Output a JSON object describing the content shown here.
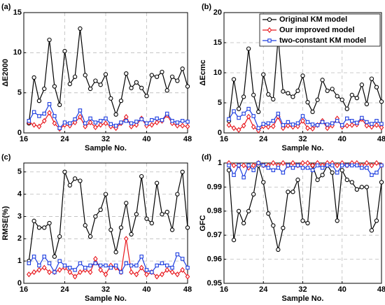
{
  "chart_data": [
    {
      "type": "line",
      "label": "(a)",
      "xlabel": "Sample No.",
      "ylabel": "ΔE2000",
      "grid": true,
      "xlim": [
        16,
        48
      ],
      "xticks": [
        16,
        24,
        32,
        40,
        48
      ],
      "ylim": [
        0,
        15
      ],
      "yticks": [
        0,
        5,
        10,
        15
      ],
      "x": [
        17,
        18,
        19,
        20,
        21,
        22,
        23,
        24,
        25,
        26,
        27,
        28,
        29,
        30,
        31,
        32,
        33,
        34,
        35,
        36,
        37,
        38,
        39,
        40,
        41,
        42,
        43,
        44,
        45,
        46,
        47,
        48
      ],
      "series": [
        {
          "color": "#000000",
          "marker": "circle",
          "values": [
            1.2,
            6.9,
            4.0,
            5.5,
            11.6,
            5.8,
            3.5,
            10.2,
            6.1,
            7.0,
            13.0,
            7.2,
            5.5,
            6.5,
            6.0,
            7.3,
            4.3,
            2.3,
            4.0,
            7.4,
            5.6,
            6.3,
            5.6,
            4.6,
            7.2,
            7.0,
            7.6,
            5.3,
            7.0,
            6.5,
            8.0,
            5.8
          ]
        },
        {
          "color": "#e8171d",
          "marker": "diamond",
          "values": [
            1.3,
            1.0,
            0.8,
            1.5,
            2.5,
            1.2,
            0.5,
            1.0,
            0.9,
            1.3,
            2.0,
            0.8,
            1.3,
            0.7,
            1.0,
            1.2,
            0.8,
            0.6,
            1.2,
            2.0,
            0.8,
            1.0,
            1.8,
            0.9,
            1.0,
            1.3,
            1.5,
            2.2,
            1.2,
            0.9,
            0.9,
            0.8
          ]
        },
        {
          "color": "#1f3fe0",
          "marker": "square",
          "values": [
            1.5,
            2.6,
            2.1,
            2.4,
            3.6,
            2.1,
            0.6,
            1.3,
            1.2,
            1.7,
            2.8,
            1.2,
            1.8,
            1.3,
            1.5,
            1.8,
            1.1,
            0.9,
            1.3,
            1.5,
            1.2,
            1.4,
            1.7,
            1.2,
            1.6,
            1.8,
            1.6,
            2.4,
            1.5,
            1.3,
            1.5,
            1.4
          ]
        }
      ]
    },
    {
      "type": "line",
      "label": "(b)",
      "xlabel": "Sample No.",
      "ylabel": "ΔEcmc",
      "grid": true,
      "legend": "upper right",
      "xlim": [
        16,
        48
      ],
      "xticks": [
        16,
        24,
        32,
        40,
        48
      ],
      "ylim": [
        0,
        20
      ],
      "yticks": [
        0,
        5,
        10,
        15,
        20
      ],
      "x": [
        17,
        18,
        19,
        20,
        21,
        22,
        23,
        24,
        25,
        26,
        27,
        28,
        29,
        30,
        31,
        32,
        33,
        34,
        35,
        36,
        37,
        38,
        39,
        40,
        41,
        42,
        43,
        44,
        45,
        46,
        47,
        48
      ],
      "series": [
        {
          "name": "Original KM model",
          "color": "#000000",
          "marker": "circle",
          "values": [
            2.0,
            8.9,
            4.0,
            6.0,
            14.0,
            6.3,
            3.5,
            9.7,
            6.4,
            5.6,
            15.8,
            6.9,
            6.6,
            6.0,
            7.0,
            9.5,
            5.1,
            3.5,
            5.5,
            8.8,
            7.0,
            7.3,
            6.1,
            5.5,
            4.0,
            6.3,
            5.8,
            8.0,
            4.8,
            9.0,
            7.6,
            5.2
          ]
        },
        {
          "name": "Our improved model",
          "color": "#e8171d",
          "marker": "diamond",
          "values": [
            1.3,
            0.8,
            0.5,
            1.2,
            2.7,
            1.0,
            0.4,
            1.1,
            1.0,
            1.1,
            2.7,
            0.8,
            1.2,
            1.0,
            1.1,
            2.0,
            0.8,
            0.7,
            1.3,
            2.0,
            0.8,
            1.2,
            2.4,
            1.0,
            1.2,
            1.3,
            1.4,
            2.3,
            1.2,
            1.0,
            1.3,
            0.9
          ]
        },
        {
          "name": "two-constant KM model",
          "color": "#1f3fe0",
          "marker": "square",
          "values": [
            2.3,
            3.6,
            2.5,
            3.2,
            4.0,
            2.8,
            0.8,
            1.5,
            1.6,
            2.0,
            3.2,
            1.3,
            1.8,
            1.4,
            1.6,
            2.8,
            1.8,
            1.4,
            1.3,
            1.8,
            1.4,
            1.6,
            2.0,
            1.3,
            2.4,
            2.0,
            1.7,
            2.5,
            1.8,
            1.5,
            2.0,
            1.5
          ]
        }
      ]
    },
    {
      "type": "line",
      "label": "(c)",
      "xlabel": "Sample No.",
      "ylabel": "RMSE(%)",
      "grid": true,
      "xlim": [
        16,
        48
      ],
      "xticks": [
        16,
        24,
        32,
        40,
        48
      ],
      "ylim": [
        0,
        5.4
      ],
      "yticks": [
        0,
        1,
        2,
        3,
        4,
        5
      ],
      "x": [
        17,
        18,
        19,
        20,
        21,
        22,
        23,
        24,
        25,
        26,
        27,
        28,
        29,
        30,
        31,
        32,
        33,
        34,
        35,
        36,
        37,
        38,
        39,
        40,
        41,
        42,
        43,
        44,
        45,
        46,
        47,
        48
      ],
      "series": [
        {
          "color": "#000000",
          "marker": "circle",
          "values": [
            1.0,
            2.8,
            2.5,
            2.5,
            2.7,
            1.2,
            2.1,
            5.0,
            4.4,
            4.7,
            4.6,
            2.6,
            2.1,
            3.0,
            3.3,
            4.0,
            2.4,
            1.4,
            2.5,
            3.6,
            2.2,
            3.1,
            4.8,
            2.9,
            2.7,
            4.5,
            3.1,
            3.2,
            2.4,
            4.0,
            5.0,
            2.5
          ]
        },
        {
          "color": "#e8171d",
          "marker": "diamond",
          "values": [
            0.4,
            0.5,
            0.6,
            0.7,
            0.5,
            0.5,
            0.6,
            0.7,
            0.5,
            0.3,
            0.5,
            0.6,
            0.5,
            1.1,
            0.6,
            0.4,
            0.8,
            0.7,
            0.5,
            2.0,
            0.5,
            0.4,
            0.7,
            0.4,
            0.5,
            0.3,
            0.4,
            0.6,
            0.5,
            0.4,
            0.6,
            0.3
          ]
        },
        {
          "color": "#1f3fe0",
          "marker": "square",
          "values": [
            0.9,
            1.2,
            0.8,
            1.2,
            0.9,
            0.5,
            1.0,
            0.8,
            0.7,
            0.6,
            0.9,
            0.7,
            0.8,
            0.9,
            0.8,
            0.8,
            0.7,
            0.8,
            0.5,
            0.9,
            0.8,
            0.8,
            1.2,
            0.6,
            0.5,
            0.8,
            0.9,
            0.8,
            0.7,
            1.3,
            1.1,
            0.7
          ]
        }
      ]
    },
    {
      "type": "line",
      "label": "(d)",
      "xlabel": "Sample No.",
      "ylabel": "GFC",
      "grid": true,
      "xlim": [
        16,
        48
      ],
      "xticks": [
        16,
        24,
        32,
        40,
        48
      ],
      "ylim": [
        0.95,
        1
      ],
      "yticks": [
        0.95,
        0.96,
        0.97,
        0.98,
        0.99,
        1
      ],
      "x": [
        17,
        18,
        19,
        20,
        21,
        22,
        23,
        24,
        25,
        26,
        27,
        28,
        29,
        30,
        31,
        32,
        33,
        34,
        35,
        36,
        37,
        38,
        39,
        40,
        41,
        42,
        43,
        44,
        45,
        46,
        47,
        48
      ],
      "series": [
        {
          "color": "#000000",
          "marker": "circle",
          "values": [
            0.997,
            0.968,
            0.98,
            0.975,
            0.98,
            0.987,
            0.999,
            0.992,
            0.979,
            0.974,
            0.964,
            0.973,
            0.988,
            0.988,
            0.993,
            0.976,
            0.975,
            0.999,
            0.993,
            0.995,
            0.999,
            0.996,
            0.976,
            0.997,
            0.993,
            0.992,
            0.989,
            0.99,
            0.99,
            0.972,
            0.976,
            0.992
          ]
        },
        {
          "color": "#e8171d",
          "marker": "diamond",
          "values": [
            1.0,
            0.999,
            0.999,
            0.999,
            0.998,
            0.999,
            1.0,
            0.999,
            0.999,
            1.0,
            0.999,
            1.0,
            0.999,
            1.0,
            0.999,
            1.0,
            1.0,
            0.999,
            1.0,
            0.999,
            1.0,
            1.0,
            0.999,
            1.0,
            0.999,
            1.0,
            1.0,
            0.999,
            1.0,
            0.999,
            1.0,
            0.999
          ]
        },
        {
          "color": "#1f3fe0",
          "marker": "square",
          "values": [
            0.999,
            0.995,
            0.999,
            0.994,
            0.999,
            0.997,
            1.0,
            0.999,
            0.998,
            0.997,
            0.998,
            0.996,
            0.999,
            0.998,
            0.999,
            0.998,
            0.998,
            0.997,
            0.999,
            0.998,
            0.999,
            0.999,
            0.996,
            0.999,
            0.999,
            0.999,
            0.999,
            0.998,
            0.998,
            0.995,
            0.996,
            0.999
          ]
        }
      ]
    }
  ]
}
